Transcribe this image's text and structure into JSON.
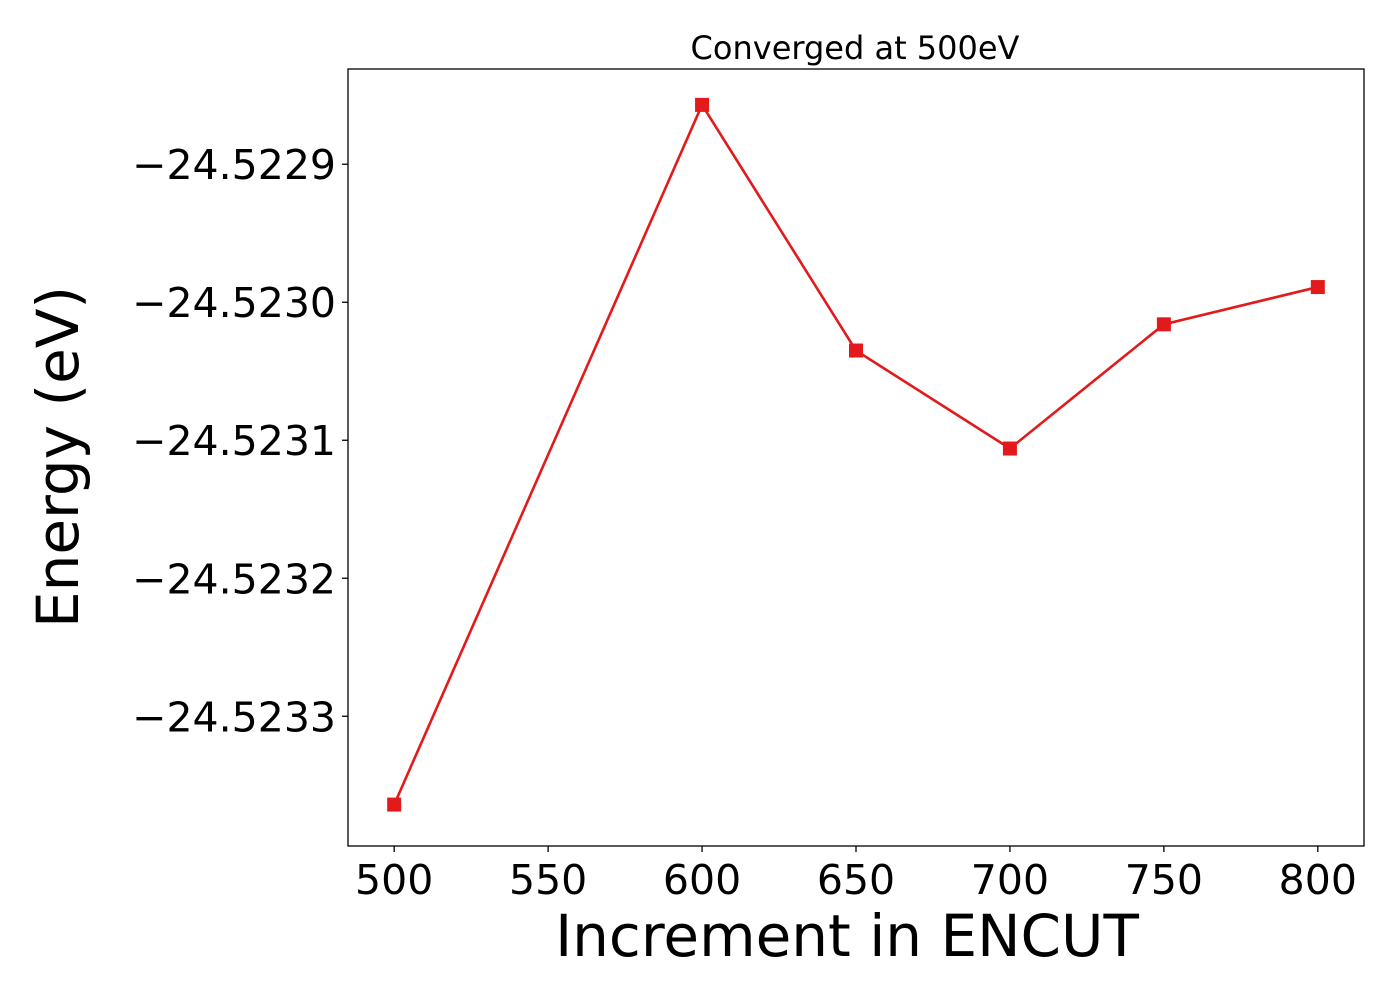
{
  "chart_data": {
    "type": "line",
    "title": "Converged at 500eV",
    "xlabel": "Increment in ENCUT",
    "ylabel": "Energy (eV)",
    "x": [
      500,
      600,
      650,
      700,
      750,
      800
    ],
    "series": [
      {
        "values": [
          -24.523364,
          -24.522857,
          -24.523035,
          -24.523106,
          -24.523016,
          -24.522989
        ],
        "color": "#e31a1c",
        "marker": "square"
      }
    ],
    "xlim": [
      485,
      815
    ],
    "ylim": [
      -24.523394,
      -24.522831
    ],
    "xticks": [
      500,
      550,
      600,
      650,
      700,
      750,
      800
    ],
    "xtick_labels": [
      "500",
      "550",
      "600",
      "650",
      "700",
      "750",
      "800"
    ],
    "yticks": [
      -24.5229,
      -24.523,
      -24.5231,
      -24.5232,
      -24.5233
    ],
    "ytick_labels": [
      "−24.5229",
      "−24.5230",
      "−24.5231",
      "−24.5232",
      "−24.5233"
    ],
    "grid": false,
    "legend": "none"
  }
}
